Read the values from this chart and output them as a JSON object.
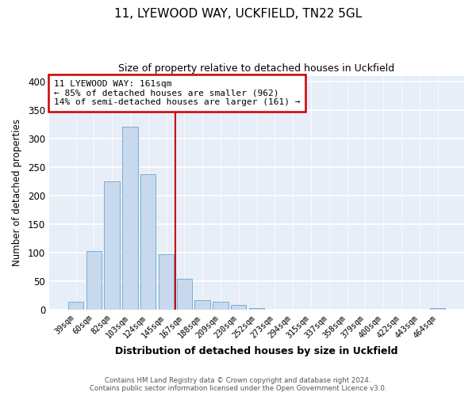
{
  "title1": "11, LYEWOOD WAY, UCKFIELD, TN22 5GL",
  "title2": "Size of property relative to detached houses in Uckfield",
  "xlabel": "Distribution of detached houses by size in Uckfield",
  "ylabel": "Number of detached properties",
  "bar_labels": [
    "39sqm",
    "60sqm",
    "82sqm",
    "103sqm",
    "124sqm",
    "145sqm",
    "167sqm",
    "188sqm",
    "209sqm",
    "230sqm",
    "252sqm",
    "273sqm",
    "294sqm",
    "315sqm",
    "337sqm",
    "358sqm",
    "379sqm",
    "400sqm",
    "422sqm",
    "443sqm",
    "464sqm"
  ],
  "bar_values": [
    14,
    103,
    225,
    320,
    237,
    97,
    54,
    17,
    14,
    9,
    3,
    1,
    0,
    0,
    0,
    0,
    0,
    0,
    0,
    0,
    3
  ],
  "bar_color": "#c8d9ee",
  "bar_edge_color": "#7aadd4",
  "vline_x": 5.5,
  "vline_color": "#cc0000",
  "annotation_title": "11 LYEWOOD WAY: 161sqm",
  "annotation_line1": "← 85% of detached houses are smaller (962)",
  "annotation_line2": "14% of semi-detached houses are larger (161) →",
  "annotation_box_edge": "#cc0000",
  "ylim": [
    0,
    410
  ],
  "yticks": [
    0,
    50,
    100,
    150,
    200,
    250,
    300,
    350,
    400
  ],
  "footer1": "Contains HM Land Registry data © Crown copyright and database right 2024.",
  "footer2": "Contains public sector information licensed under the Open Government Licence v3.0.",
  "bg_color": "#ffffff",
  "plot_bg_color": "#e8eef7"
}
